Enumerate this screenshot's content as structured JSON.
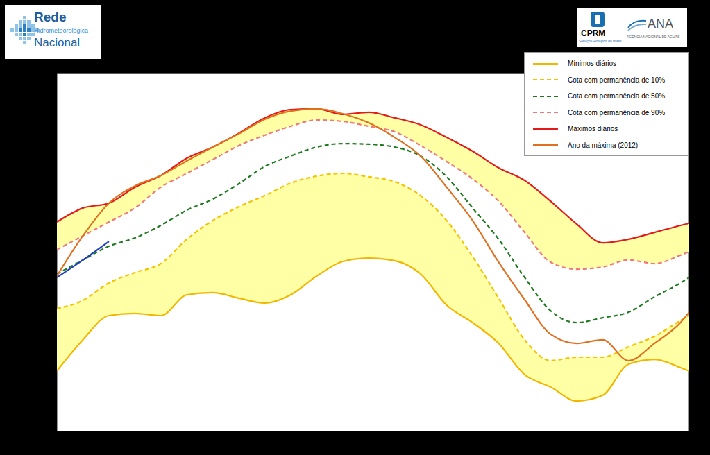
{
  "header": {
    "logo_left": [
      "Rede",
      "Hidrometeorológica",
      "Nacional"
    ],
    "logo_right": {
      "cprm": "CPRM",
      "cprm_subtitle": "Serviço Geológico do Brasil",
      "ana": "ANA",
      "ana_subtitle": "AGÊNCIA NACIONAL DE ÁGUAS"
    }
  },
  "chart_data": {
    "type": "line",
    "x": [
      0,
      15,
      30,
      45,
      60,
      75,
      90,
      105,
      120,
      135,
      150,
      165,
      180,
      195,
      210,
      225,
      240,
      255,
      270,
      285,
      300,
      315,
      330,
      345,
      360,
      365
    ],
    "xlim": [
      0,
      365
    ],
    "ylim": [
      10,
      30
    ],
    "yticks": [
      10,
      15,
      20,
      25,
      30
    ],
    "grid": true,
    "tick_labels": false,
    "legend": "top-right",
    "series": [
      {
        "name": "Mínimos diários",
        "color": "#f2b600",
        "line_style": "solid",
        "values": [
          13.37,
          15.11,
          16.46,
          16.58,
          16.46,
          17.62,
          17.74,
          17.43,
          17.16,
          17.62,
          18.67,
          19.48,
          19.67,
          19.52,
          18.78,
          17.04,
          16.07,
          14.91,
          13.17,
          12.48,
          11.7,
          12.01,
          13.75,
          14.02,
          13.56,
          13.37
        ]
      },
      {
        "name": "Cota com permanência de 10%",
        "color": "#f5c200",
        "line_style": "dashed",
        "values": [
          16.85,
          17.31,
          18.28,
          18.86,
          19.36,
          20.72,
          21.76,
          22.53,
          23.15,
          23.85,
          24.24,
          24.39,
          24.2,
          23.93,
          23.15,
          21.76,
          19.75,
          17.43,
          15.11,
          13.95,
          14.14,
          14.14,
          14.72,
          15.3,
          16.19,
          16.46
        ]
      },
      {
        "name": "Cota com permanência de 50%",
        "color": "#1e7a1e",
        "line_style": "dashed",
        "values": [
          18.78,
          19.56,
          20.33,
          20.79,
          21.49,
          22.34,
          22.96,
          23.81,
          24.78,
          25.36,
          25.86,
          26.05,
          26.02,
          25.86,
          25.36,
          24.2,
          22.46,
          20.72,
          18.59,
          16.73,
          16.07,
          16.34,
          16.65,
          17.51,
          18.28,
          18.59
        ]
      },
      {
        "name": "Cota com permanência de 90%",
        "color": "#f07878",
        "line_style": "dashed",
        "values": [
          20.14,
          20.91,
          21.68,
          22.46,
          23.62,
          24.39,
          25.16,
          25.94,
          26.52,
          27.02,
          27.37,
          27.29,
          27.02,
          26.71,
          25.94,
          25.05,
          24.08,
          22.84,
          21.1,
          19.44,
          19.05,
          19.17,
          19.56,
          19.36,
          19.83,
          20.02
        ]
      },
      {
        "name": "Máximos diários",
        "color": "#e31a1c",
        "line_style": "solid",
        "values": [
          21.68,
          22.46,
          22.73,
          23.62,
          24.27,
          25.24,
          25.86,
          26.63,
          27.49,
          27.95,
          27.99,
          27.68,
          27.8,
          27.49,
          27.1,
          26.4,
          25.63,
          24.7,
          24.0,
          22.84,
          21.57,
          20.52,
          20.72,
          21.1,
          21.49,
          21.61
        ]
      },
      {
        "name": "Ano da máxima (2012)",
        "color": "#e07020",
        "line_style": "solid",
        "values": [
          18.67,
          20.91,
          22.73,
          23.69,
          24.27,
          25.09,
          25.86,
          26.6,
          27.41,
          27.87,
          27.99,
          27.72,
          27.21,
          26.4,
          25.36,
          23.62,
          21.76,
          19.44,
          17.35,
          15.42,
          14.91,
          15.11,
          13.95,
          14.91,
          16.07,
          16.65
        ]
      },
      {
        "color": "#1f3fbf",
        "line_style": "solid",
        "values": [
          18.59,
          19.56,
          20.6,
          null,
          null,
          null,
          null,
          null,
          null,
          null,
          null,
          null,
          null,
          null,
          null,
          null,
          null,
          null,
          null,
          null,
          null,
          null,
          null,
          null,
          null,
          null
        ]
      }
    ]
  }
}
